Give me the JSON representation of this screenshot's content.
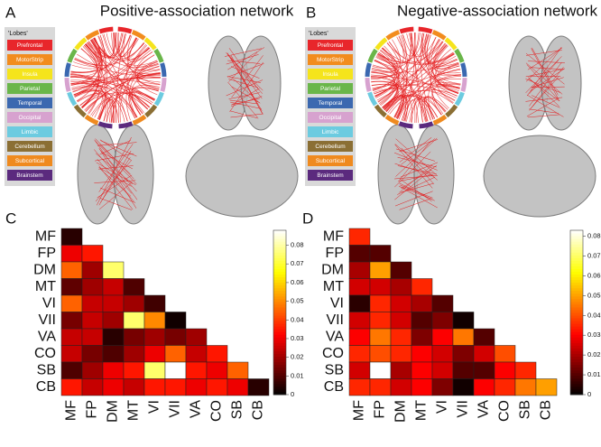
{
  "panels": [
    {
      "letter": "A",
      "title": "Positive-association network"
    },
    {
      "letter": "B",
      "title": "Negative-association network"
    }
  ],
  "lobes_legend": {
    "title": "'Lobes'",
    "items": [
      {
        "name": "Prefrontal",
        "color": "#e8262b"
      },
      {
        "name": "MotorStrip",
        "color": "#f28c1e"
      },
      {
        "name": "Insula",
        "color": "#f5e41c"
      },
      {
        "name": "Parietal",
        "color": "#6ab64a"
      },
      {
        "name": "Temporal",
        "color": "#3b68b0"
      },
      {
        "name": "Occipital",
        "color": "#d7a2cf"
      },
      {
        "name": "Limbic",
        "color": "#6ccbe0"
      },
      {
        "name": "Cerebellum",
        "color": "#8b6f34"
      },
      {
        "name": "Subcortical",
        "color": "#ef8a1f"
      },
      {
        "name": "Brainstem",
        "color": "#5b2a7e"
      }
    ]
  },
  "chart_data": [
    {
      "type": "heatmap",
      "letter": "C",
      "categories": [
        "MF",
        "FP",
        "DM",
        "MT",
        "VI",
        "VII",
        "VA",
        "CO",
        "SB",
        "CB"
      ],
      "colormap": "hot",
      "values": [
        [
          0.005
        ],
        [
          0.03,
          0.035
        ],
        [
          0.045,
          0.02,
          0.075
        ],
        [
          0.012,
          0.02,
          0.025,
          0.01
        ],
        [
          0.045,
          0.025,
          0.025,
          0.02,
          0.008
        ],
        [
          0.015,
          0.025,
          0.02,
          0.075,
          0.05,
          0.002
        ],
        [
          0.025,
          0.025,
          0.005,
          0.015,
          0.02,
          0.015,
          0.02
        ],
        [
          0.025,
          0.015,
          0.01,
          0.02,
          0.03,
          0.045,
          0.025,
          0.035
        ],
        [
          0.01,
          0.02,
          0.03,
          0.035,
          0.075,
          0.088,
          0.035,
          0.03,
          0.045
        ],
        [
          0.035,
          0.025,
          0.03,
          0.025,
          0.035,
          0.035,
          0.03,
          0.035,
          0.03,
          0.005
        ]
      ],
      "zlim": [
        0,
        0.088
      ],
      "zticks": [
        0,
        0.01,
        0.02,
        0.03,
        0.04,
        0.05,
        0.06,
        0.07,
        0.08
      ]
    },
    {
      "type": "heatmap",
      "letter": "D",
      "categories": [
        "MF",
        "FP",
        "DM",
        "MT",
        "VI",
        "VII",
        "VA",
        "CO",
        "SB",
        "CB"
      ],
      "colormap": "hot",
      "values": [
        [
          0.035
        ],
        [
          0.01,
          0.01
        ],
        [
          0.02,
          0.05,
          0.01
        ],
        [
          0.025,
          0.025,
          0.02,
          0.035
        ],
        [
          0.005,
          0.035,
          0.025,
          0.02,
          0.01
        ],
        [
          0.025,
          0.035,
          0.025,
          0.01,
          0.015,
          0.002
        ],
        [
          0.03,
          0.045,
          0.035,
          0.015,
          0.03,
          0.045,
          0.01
        ],
        [
          0.035,
          0.04,
          0.035,
          0.03,
          0.025,
          0.015,
          0.025,
          0.04
        ],
        [
          0.025,
          0.083,
          0.02,
          0.03,
          0.025,
          0.01,
          0.01,
          0.03,
          0.035
        ],
        [
          0.035,
          0.035,
          0.025,
          0.03,
          0.015,
          0.002,
          0.03,
          0.035,
          0.045,
          0.05
        ]
      ],
      "zlim": [
        0,
        0.083
      ],
      "zticks": [
        0,
        0.01,
        0.02,
        0.03,
        0.04,
        0.05,
        0.06,
        0.07,
        0.08
      ]
    }
  ]
}
